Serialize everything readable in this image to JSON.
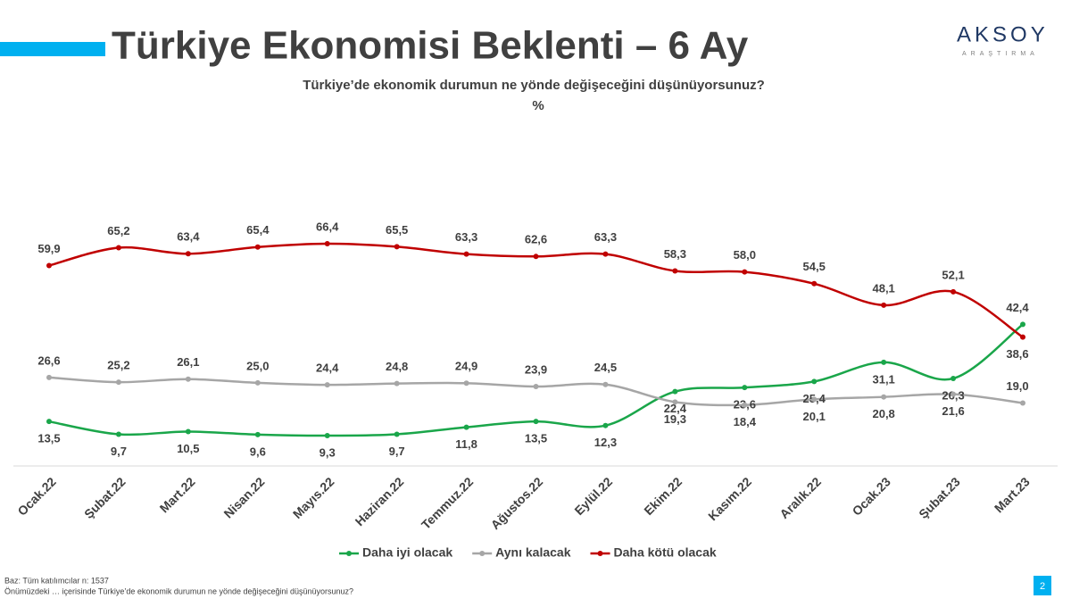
{
  "logo": {
    "name": "AKSOY",
    "tagline": "ARAŞTIRMA"
  },
  "page_number": 2,
  "notes": [
    "Baz: Tüm katılımcılar n: 1537",
    "Önümüzdeki … içerisinde Türkiye’de ekonomik durumun ne yönde değişeceğini düşünüyorsunuz?"
  ],
  "chart_data": {
    "type": "line",
    "title": "Türkiye Ekonomisi Beklenti – 6 Ay",
    "subtitle": "Türkiye’de ekonomik durumun ne yönde değişeceğini düşünüyorsunuz?",
    "y_unit": "%",
    "categories": [
      "Ocak.22",
      "Şubat.22",
      "Mart.22",
      "Nisan.22",
      "Mayıs.22",
      "Haziran.22",
      "Temmuz.22",
      "Ağustos.22",
      "Eylül.22",
      "Ekim.22",
      "Kasım.22",
      "Aralık.22",
      "Ocak.23",
      "Şubat.23",
      "Mart.23"
    ],
    "ylim": [
      0,
      100
    ],
    "series": [
      {
        "name": "Daha iyi olacak",
        "color": "#1aa64a",
        "values": [
          13.5,
          9.7,
          10.5,
          9.6,
          9.3,
          9.7,
          11.8,
          13.5,
          12.3,
          22.4,
          23.6,
          25.4,
          31.1,
          26.3,
          42.4
        ],
        "value_labels": [
          "13,5",
          "9,7",
          "10,5",
          "9,6",
          "9,3",
          "9,7",
          "11,8",
          "13,5",
          "12,3",
          "22,4",
          "23,6",
          "25,4",
          "31,1",
          "26,3",
          "42,4"
        ]
      },
      {
        "name": "Aynı kalacak",
        "color": "#a6a6a6",
        "values": [
          26.6,
          25.2,
          26.1,
          25.0,
          24.4,
          24.8,
          24.9,
          23.9,
          24.5,
          19.3,
          18.4,
          20.1,
          20.8,
          21.6,
          19.0
        ],
        "value_labels": [
          "26,6",
          "25,2",
          "26,1",
          "25,0",
          "24,4",
          "24,8",
          "24,9",
          "23,9",
          "24,5",
          "19,3",
          "18,4",
          "20,1",
          "20,8",
          "21,6",
          "19,0"
        ]
      },
      {
        "name": "Daha kötü olacak",
        "color": "#c00000",
        "values": [
          59.9,
          65.2,
          63.4,
          65.4,
          66.4,
          65.5,
          63.3,
          62.6,
          63.3,
          58.3,
          58.0,
          54.5,
          48.1,
          52.1,
          38.6
        ],
        "value_labels": [
          "59,9",
          "65,2",
          "63,4",
          "65,4",
          "66,4",
          "65,5",
          "63,3",
          "62,6",
          "63,3",
          "58,3",
          "58,0",
          "54,5",
          "48,1",
          "52,1",
          "38,6"
        ]
      }
    ]
  }
}
